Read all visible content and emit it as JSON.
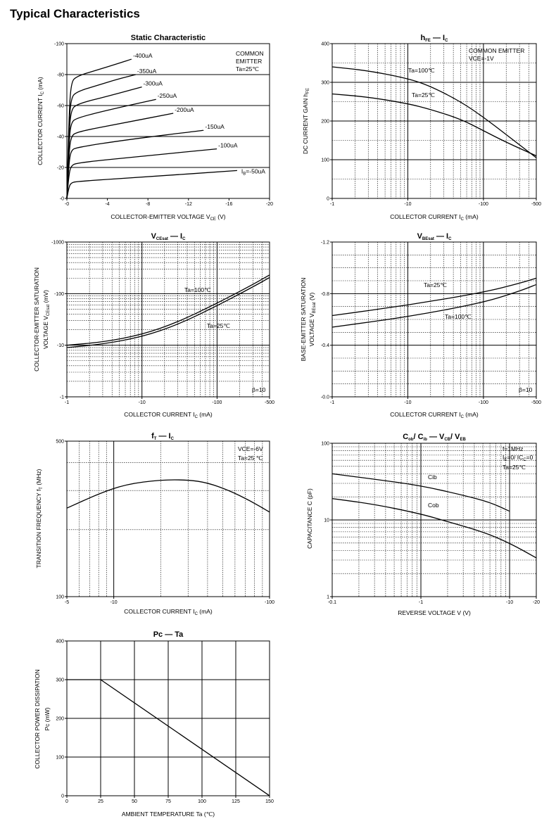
{
  "page": {
    "title": "Typical Characteristics"
  },
  "chart_data": [
    {
      "id": "static",
      "type": "line",
      "title": "Static Characteristic",
      "xlabel": "COLLECTOR-EMITTER VOLTAGE",
      "xlabel_symbol": "V",
      "xlabel_sub": "CE",
      "xlabel_unit": "(V)",
      "ylabel": "COLLECTOR CURRENT",
      "ylabel_symbol": "I",
      "ylabel_sub": "C",
      "ylabel_unit": "(mA)",
      "x_scale": "linear",
      "y_scale": "linear",
      "xlim": [
        0,
        -20
      ],
      "ylim": [
        0,
        -100
      ],
      "x_ticks": [
        0,
        -4,
        -8,
        -12,
        -16,
        -20
      ],
      "x_tick_labels": [
        "-0",
        "-4",
        "-8",
        "-12",
        "-16",
        "-20"
      ],
      "y_ticks": [
        0,
        -20,
        -40,
        -60,
        -80,
        -100
      ],
      "y_tick_labels": [
        "-0",
        "-20",
        "-40",
        "-60",
        "-80",
        "-100"
      ],
      "grid_x": [],
      "grid_y": [
        -20,
        -40,
        -60,
        -80
      ],
      "annotations": [
        "COMMON",
        "EMITTER",
        "Ta=25℃"
      ],
      "series": [
        {
          "name": "-400uA",
          "x": [
            0,
            -0.2,
            -0.4,
            -1,
            -3,
            -5,
            -6.4
          ],
          "y": [
            0,
            -50,
            -75,
            -79,
            -83,
            -87,
            -90
          ]
        },
        {
          "name": "-350uA",
          "x": [
            0,
            -0.2,
            -0.4,
            -1,
            -3,
            -5,
            -6.8
          ],
          "y": [
            0,
            -45,
            -65,
            -69,
            -73,
            -77,
            -80
          ]
        },
        {
          "name": "-300uA",
          "x": [
            0,
            -0.2,
            -0.4,
            -1,
            -4,
            -7.4
          ],
          "y": [
            0,
            -40,
            -57,
            -61,
            -66,
            -72
          ]
        },
        {
          "name": "-250uA",
          "x": [
            0,
            -0.2,
            -0.4,
            -1,
            -4,
            -8.8
          ],
          "y": [
            0,
            -35,
            -49,
            -52,
            -57,
            -64
          ]
        },
        {
          "name": "-200uA",
          "x": [
            0,
            -0.2,
            -0.4,
            -1,
            -5,
            -10.5
          ],
          "y": [
            0,
            -28,
            -40,
            -43,
            -48,
            -55
          ]
        },
        {
          "name": "-150uA",
          "x": [
            0,
            -0.2,
            -0.4,
            -1,
            -6,
            -13.5
          ],
          "y": [
            0,
            -22,
            -31,
            -33,
            -38,
            -44
          ]
        },
        {
          "name": "-100uA",
          "x": [
            0,
            -0.2,
            -0.4,
            -1,
            -7,
            -14.8
          ],
          "y": [
            0,
            -15,
            -21,
            -23,
            -27,
            -32
          ]
        },
        {
          "name": "I_B=-50uA",
          "x": [
            0,
            -0.2,
            -0.4,
            -1,
            -8,
            -16.8
          ],
          "y": [
            0,
            -7,
            -10,
            -11,
            -14,
            -18
          ]
        }
      ],
      "series_labels": [
        "-400uA",
        "-350uA",
        "-300uA",
        "-250uA",
        "-200uA",
        "-150uA",
        "-100uA",
        "=-50uA"
      ],
      "ib_symbol": "I",
      "ib_sub": "B"
    },
    {
      "id": "hfe",
      "type": "line",
      "title_parts": [
        "h",
        "FE",
        "I",
        "C"
      ],
      "xlabel": "COLLECTOR CURRENT",
      "xlabel_symbol": "I",
      "xlabel_sub": "C",
      "xlabel_unit": "(mA)",
      "ylabel": "DC CURRENT GAIN",
      "ylabel_symbol": "h",
      "ylabel_sub": "FE",
      "x_scale": "log",
      "y_scale": "linear",
      "xlim": [
        -1,
        -500
      ],
      "ylim": [
        0,
        400
      ],
      "x_ticks": [
        -1,
        -10,
        -100,
        -500
      ],
      "x_tick_labels": [
        "-1",
        "-10",
        "-100",
        "-500"
      ],
      "y_ticks": [
        0,
        100,
        200,
        300,
        400
      ],
      "y_tick_labels": [
        "0",
        "100",
        "200",
        "300",
        "400"
      ],
      "grid_y_major": [
        100,
        200,
        300
      ],
      "grid_y_minor": [
        50,
        150,
        250,
        350
      ],
      "annotations": [
        "COMMON EMITTER",
        "VCE=-1V"
      ],
      "series": [
        {
          "name": "Ta=100℃",
          "x": [
            -1,
            -3,
            -10,
            -20,
            -50,
            -100,
            -200,
            -500
          ],
          "y": [
            340,
            330,
            310,
            290,
            250,
            210,
            165,
            105
          ]
        },
        {
          "name": "Ta=25℃",
          "x": [
            -1,
            -3,
            -10,
            -20,
            -50,
            -100,
            -200,
            -500
          ],
          "y": [
            270,
            262,
            245,
            230,
            205,
            175,
            145,
            110
          ]
        }
      ]
    },
    {
      "id": "vcesat",
      "type": "line",
      "title_parts": [
        "V",
        "CEsat",
        "I",
        "C"
      ],
      "xlabel": "COLLECTOR CURRENT",
      "xlabel_symbol": "I",
      "xlabel_sub": "C",
      "xlabel_unit": "(mA)",
      "ylabel": "COLLECTOR-EMITTER SATURATION",
      "ylabel2": "VOLTAGE",
      "ylabel_symbol": "V",
      "ylabel_sub": "CEsat",
      "ylabel_unit": "(mV)",
      "x_scale": "log",
      "y_scale": "log",
      "xlim": [
        -1,
        -500
      ],
      "ylim": [
        -1,
        -1000
      ],
      "x_ticks": [
        -1,
        -10,
        -100,
        -500
      ],
      "x_tick_labels": [
        "-1",
        "-10",
        "-100",
        "-500"
      ],
      "y_ticks": [
        -1,
        -10,
        -100,
        -1000
      ],
      "y_tick_labels": [
        "-1",
        "-10",
        "-100",
        "-1000"
      ],
      "annotations": [
        "β=10"
      ],
      "series": [
        {
          "name": "Ta=100℃",
          "x": [
            -1,
            -3,
            -10,
            -30,
            -100,
            -300,
            -500
          ],
          "y": [
            -10,
            -11.5,
            -16,
            -28,
            -65,
            -150,
            -230
          ]
        },
        {
          "name": "Ta=25℃",
          "x": [
            -1,
            -3,
            -10,
            -30,
            -100,
            -300,
            -500
          ],
          "y": [
            -9,
            -10.5,
            -14.5,
            -25,
            -58,
            -135,
            -205
          ]
        }
      ]
    },
    {
      "id": "vbesat",
      "type": "line",
      "title_parts": [
        "V",
        "BEsat",
        "I",
        "C"
      ],
      "xlabel": "COLLECTOR CURRENT",
      "xlabel_symbol": "I",
      "xlabel_sub": "C",
      "xlabel_unit": "(mA)",
      "ylabel": "BASE-EMITTER SATURATION",
      "ylabel2": "VOLTAGE",
      "ylabel_symbol": "V",
      "ylabel_sub": "BEsat",
      "ylabel_unit": "(V)",
      "x_scale": "log",
      "y_scale": "linear",
      "xlim": [
        -1,
        -500
      ],
      "ylim": [
        0,
        -1.2
      ],
      "x_ticks": [
        -1,
        -10,
        -100,
        -500
      ],
      "x_tick_labels": [
        "-1",
        "-10",
        "-100",
        "-500"
      ],
      "y_ticks": [
        0,
        -0.4,
        -0.8,
        -1.2
      ],
      "y_tick_labels": [
        "-0.0",
        "-0.4",
        "-0.8",
        "-1.2"
      ],
      "annotations": [
        "β=10"
      ],
      "series": [
        {
          "name": "Ta=25℃",
          "x": [
            -1,
            -10,
            -100,
            -300,
            -500
          ],
          "y": [
            -0.63,
            -0.71,
            -0.81,
            -0.88,
            -0.92
          ]
        },
        {
          "name": "Ta=100℃",
          "x": [
            -1,
            -10,
            -100,
            -300,
            -500
          ],
          "y": [
            -0.54,
            -0.62,
            -0.73,
            -0.82,
            -0.87
          ]
        }
      ]
    },
    {
      "id": "ft",
      "type": "line",
      "title_parts": [
        "f",
        "T",
        "I",
        "C"
      ],
      "xlabel": "COLLECTOR CURRENT",
      "xlabel_symbol": "I",
      "xlabel_sub": "C",
      "xlabel_unit": "(mA)",
      "ylabel": "TRANSITION FREQUENCY",
      "ylabel_symbol": "f",
      "ylabel_sub": "T",
      "ylabel_unit": "(MHz)",
      "x_scale": "log",
      "y_scale": "log",
      "xlim": [
        -5,
        -100
      ],
      "ylim": [
        100,
        500
      ],
      "x_ticks": [
        -5,
        -10,
        -100
      ],
      "x_tick_labels": [
        "-5",
        "-10",
        "-100"
      ],
      "y_ticks": [
        100,
        500
      ],
      "y_tick_labels": [
        "100",
        "500"
      ],
      "annotations": [
        "VCE=-6V",
        "Ta=25 ℃"
      ],
      "series": [
        {
          "name": "",
          "x": [
            -5,
            -8,
            -12,
            -20,
            -30,
            -40,
            -55,
            -75,
            -100
          ],
          "y": [
            250,
            290,
            320,
            335,
            335,
            325,
            300,
            270,
            240
          ]
        }
      ]
    },
    {
      "id": "cap",
      "type": "line",
      "title_parts": [
        "C",
        "ob",
        "/ C",
        "ib",
        "V",
        "CB",
        "/ V",
        "EB"
      ],
      "xlabel": "REVERSE VOLTAGE",
      "xlabel_symbol": "V",
      "xlabel_unit": "(V)",
      "ylabel": "CAPACITANCE",
      "ylabel_symbol": "C",
      "ylabel_unit": "(pF)",
      "x_scale": "log",
      "y_scale": "log",
      "xlim": [
        -0.1,
        -20
      ],
      "ylim": [
        1,
        100
      ],
      "x_ticks": [
        -0.1,
        -1,
        -10,
        -20
      ],
      "x_tick_labels": [
        "-0.1",
        "-1",
        "-10",
        "-20"
      ],
      "y_ticks": [
        1,
        10,
        100
      ],
      "y_tick_labels": [
        "1",
        "10",
        "100"
      ],
      "annotations": [
        "f=1MHz",
        "=0/ I",
        "=0",
        "Ta=25℃"
      ],
      "annot_sym": [
        "I",
        "E",
        "C"
      ],
      "series": [
        {
          "name": "Cib",
          "x": [
            -0.1,
            -0.3,
            -1,
            -3,
            -6,
            -10
          ],
          "y": [
            40,
            34,
            28,
            21,
            17,
            13
          ]
        },
        {
          "name": "Cob",
          "x": [
            -0.1,
            -0.3,
            -1,
            -2,
            -5,
            -10,
            -20
          ],
          "y": [
            19,
            16,
            12,
            9.5,
            7,
            5,
            3.2
          ]
        }
      ]
    },
    {
      "id": "pc",
      "type": "line",
      "title_parts": [
        "Pc",
        "Ta"
      ],
      "xlabel": "AMBIENT TEMPERATURE",
      "xlabel_symbol": "Ta",
      "xlabel_unit": "(℃)",
      "ylabel": "COLLECTOR POWER DISSIPATION",
      "ylabel_symbol": "Pc",
      "ylabel_unit": "(mW)",
      "x_scale": "linear",
      "y_scale": "linear",
      "xlim": [
        0,
        150
      ],
      "ylim": [
        0,
        400
      ],
      "x_ticks": [
        0,
        25,
        50,
        75,
        100,
        125,
        150
      ],
      "x_tick_labels": [
        "0",
        "25",
        "50",
        "75",
        "100",
        "125",
        "150"
      ],
      "y_ticks": [
        0,
        100,
        200,
        300,
        400
      ],
      "y_tick_labels": [
        "0",
        "100",
        "200",
        "300",
        "400"
      ],
      "series": [
        {
          "name": "",
          "x": [
            0,
            25,
            150
          ],
          "y": [
            300,
            300,
            0
          ]
        }
      ]
    }
  ]
}
